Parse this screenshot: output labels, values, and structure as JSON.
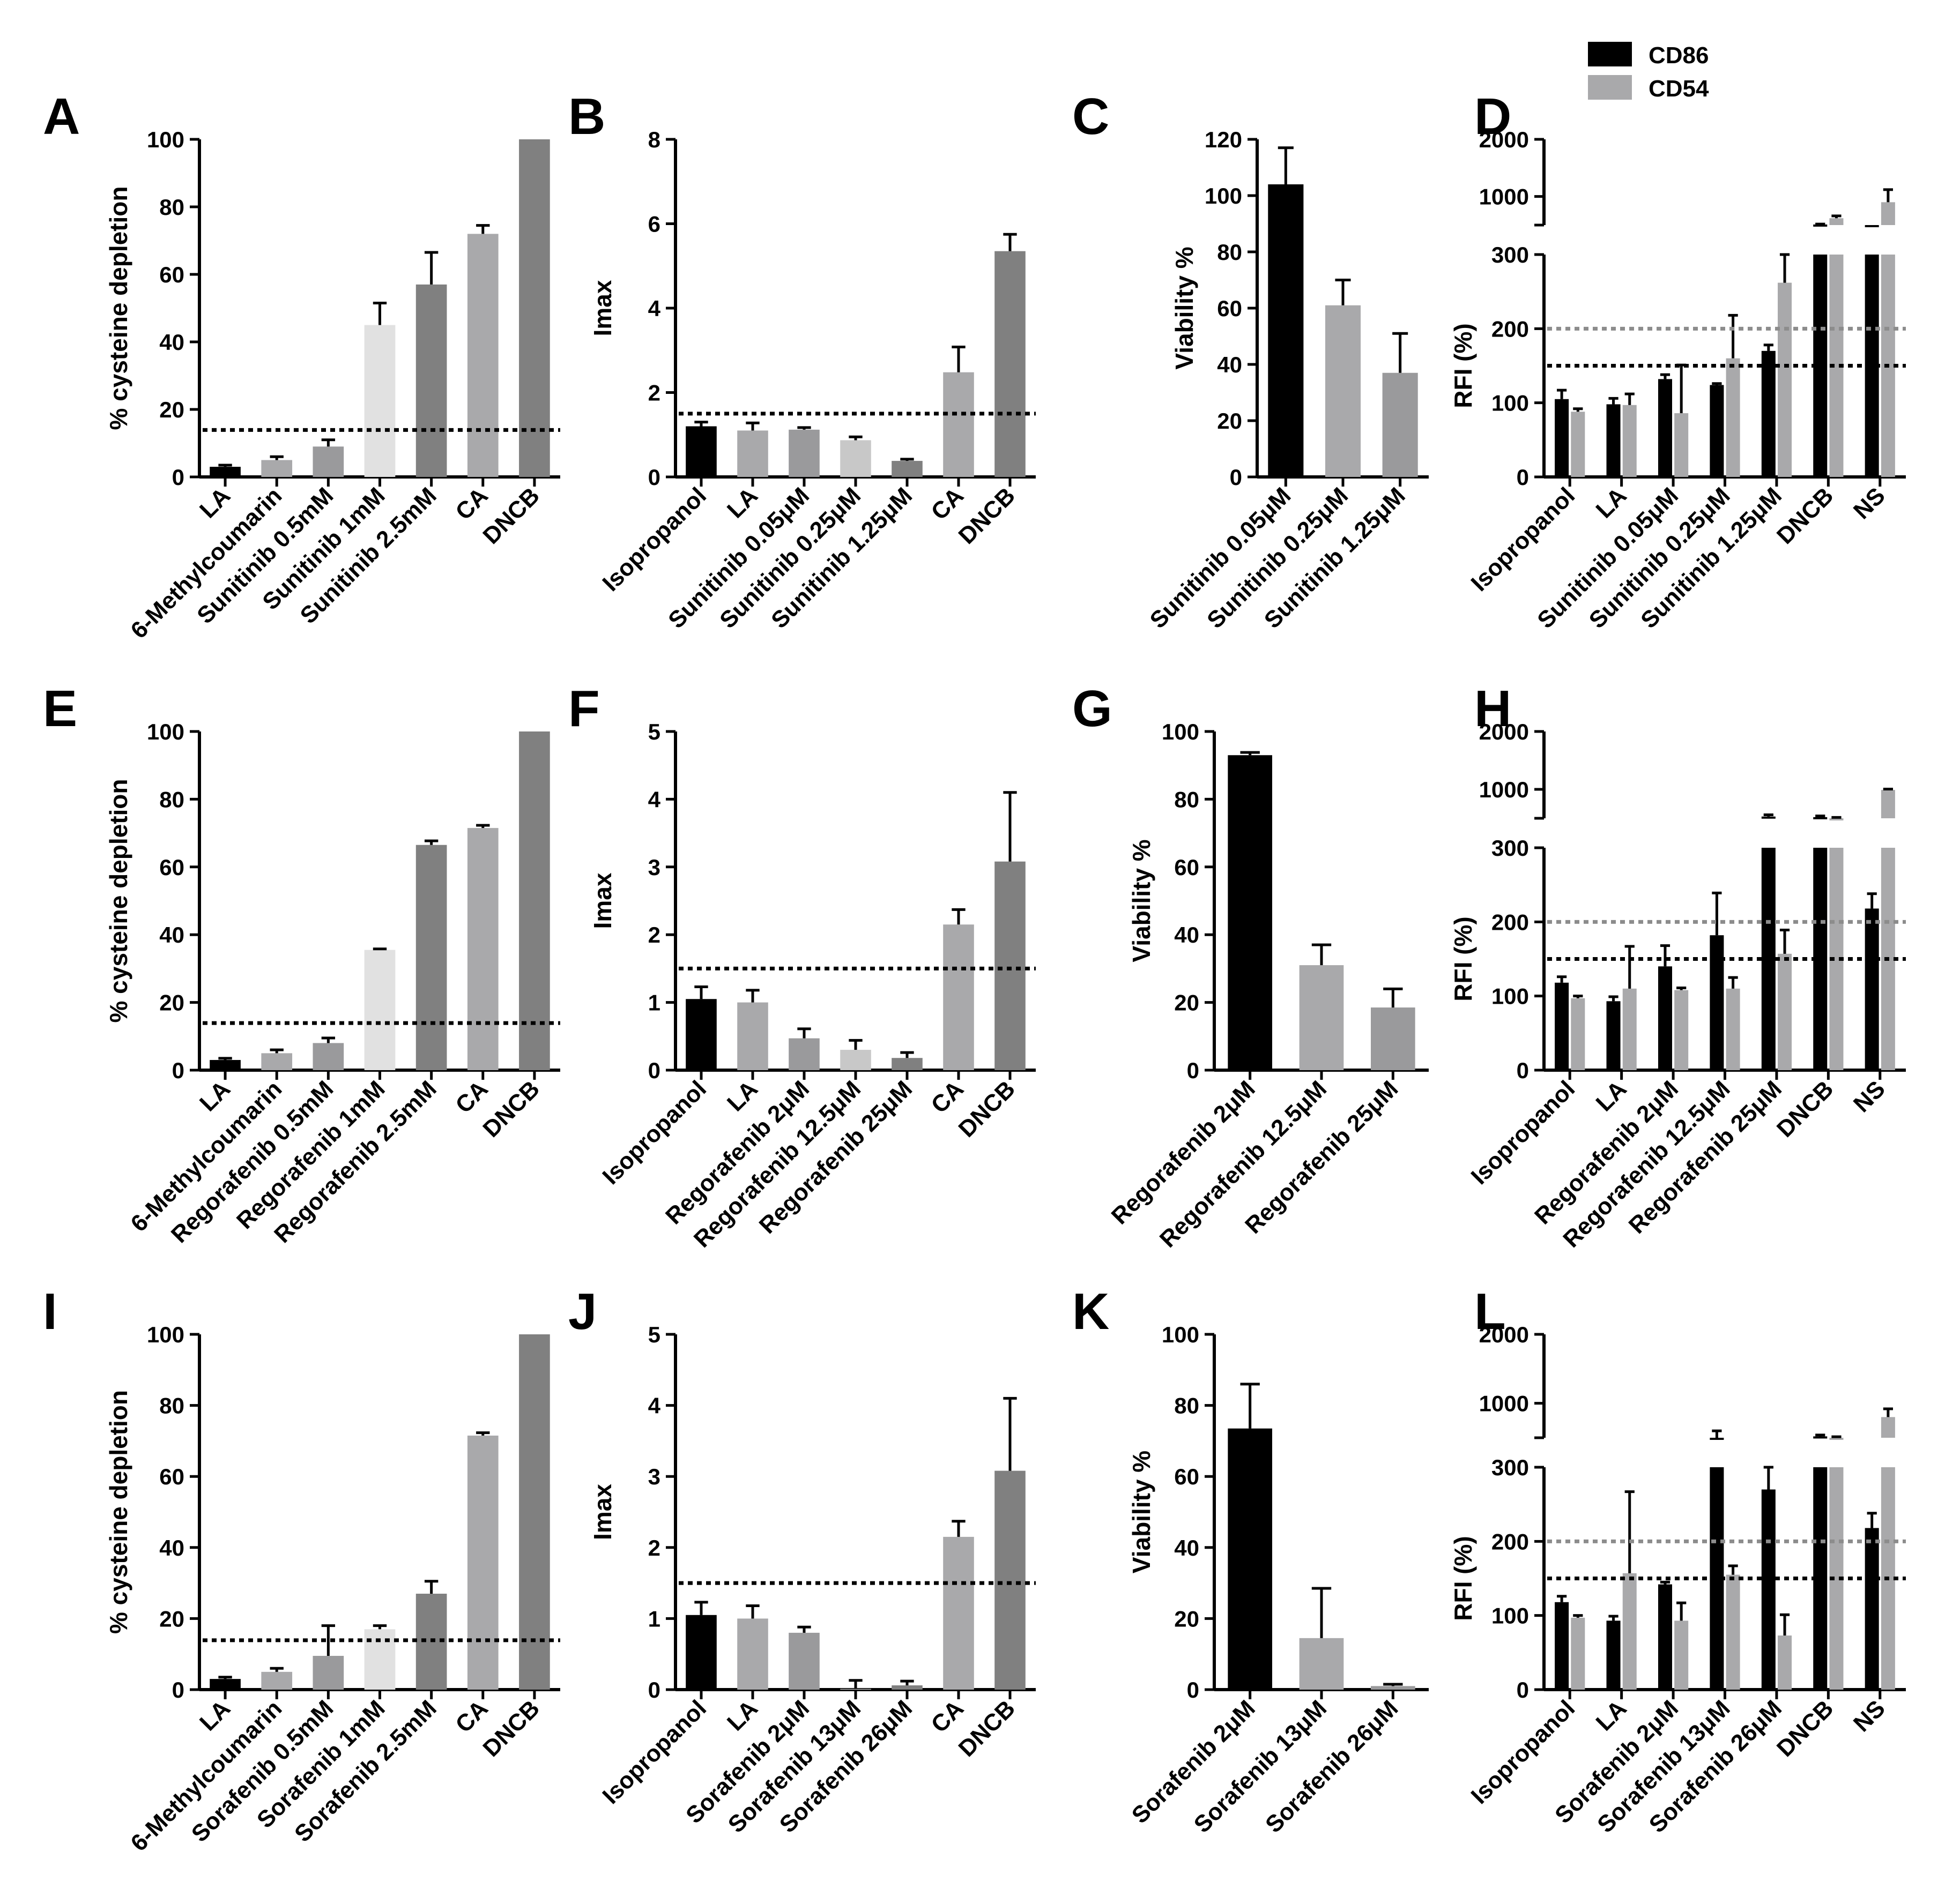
{
  "colors": {
    "black": "#000000",
    "lightest": "#e1e1e1",
    "light": "#c8c8c8",
    "mid": "#a9a9ab",
    "grey": "#9a9a9c",
    "dark": "#808080",
    "threshold_black": "#000000",
    "threshold_grey": "#8c8c8c"
  },
  "legend": {
    "items": [
      {
        "label": "CD86",
        "color": "#000000"
      },
      {
        "label": "CD54",
        "color": "#a9a9ab"
      }
    ]
  },
  "chart_data": [
    {
      "panel": "A",
      "type": "bar",
      "ylabel": "% cysteine depletion",
      "ylim": [
        0,
        100
      ],
      "yticks": [
        0,
        20,
        40,
        60,
        80,
        100
      ],
      "threshold": 13.9,
      "categories": [
        "LA",
        "6-Methylcoumarin",
        "Sunitinib 0.5mM",
        "Sunitinib 1mM",
        "Sunitinib 2.5mM",
        "CA",
        "DNCB"
      ],
      "values": [
        3,
        5,
        9,
        45,
        57,
        72,
        100
      ],
      "errors": [
        0.5,
        1,
        2,
        6.5,
        9.5,
        2.5,
        0
      ],
      "bar_colors": [
        "black",
        "mid",
        "grey",
        "lightest",
        "dark",
        "mid",
        "dark"
      ]
    },
    {
      "panel": "B",
      "type": "bar",
      "ylabel": "Imax",
      "ylim": [
        0,
        8
      ],
      "yticks": [
        0,
        2,
        4,
        6,
        8
      ],
      "threshold": 1.5,
      "categories": [
        "Isopropanol",
        "LA",
        "Sunitinib 0.05μM",
        "Sunitinib 0.25μM",
        "Sunitinib 1.25μM",
        "CA",
        "DNCB"
      ],
      "values": [
        1.2,
        1.1,
        1.12,
        0.87,
        0.38,
        2.48,
        5.35
      ],
      "errors": [
        0.1,
        0.18,
        0.05,
        0.08,
        0.04,
        0.6,
        0.4
      ],
      "bar_colors": [
        "black",
        "mid",
        "grey",
        "light",
        "dark",
        "mid",
        "dark"
      ]
    },
    {
      "panel": "C",
      "type": "bar",
      "ylabel": "Viability %",
      "ylim": [
        0,
        120
      ],
      "yticks": [
        0,
        20,
        40,
        60,
        80,
        100,
        120
      ],
      "categories": [
        "Sunitinib 0.05μM",
        "Sunitinib 0.25μM",
        "Sunitinib 1.25μM"
      ],
      "values": [
        104,
        61,
        37
      ],
      "errors": [
        13,
        9,
        14
      ],
      "bar_colors": [
        "black",
        "mid",
        "grey"
      ]
    },
    {
      "panel": "D",
      "type": "bar",
      "ylabel": "RFI (%)",
      "broken_axis": true,
      "lower_ylim": [
        0,
        300
      ],
      "lower_yticks": [
        0,
        100,
        200,
        300
      ],
      "upper_ylim": [
        500,
        2000
      ],
      "upper_yticks": [
        1000,
        2000
      ],
      "thresholds": [
        {
          "value": 150,
          "series": "CD86"
        },
        {
          "value": 200,
          "series": "CD54"
        }
      ],
      "categories": [
        "Isopropanol",
        "LA",
        "Sunitinib 0.05μM",
        "Sunitinib 0.25μM",
        "Sunitinib 1.25μM",
        "DNCB",
        "NS"
      ],
      "series": [
        {
          "name": "CD86",
          "values": [
            105,
            98,
            132,
            124,
            170,
            510,
            500
          ],
          "errors": [
            12,
            8,
            6,
            2,
            8,
            8,
            0
          ]
        },
        {
          "name": "CD54",
          "values": [
            88,
            97,
            86,
            160,
            262,
            620,
            900
          ],
          "errors": [
            4,
            15,
            65,
            58,
            38,
            40,
            220
          ]
        }
      ]
    },
    {
      "panel": "E",
      "type": "bar",
      "ylabel": "% cysteine depletion",
      "ylim": [
        0,
        100
      ],
      "yticks": [
        0,
        20,
        40,
        60,
        80,
        100
      ],
      "threshold": 13.9,
      "categories": [
        "LA",
        "6-Methylcoumarin",
        "Regorafenib 0.5mM",
        "Regorafenib 1mM",
        "Regorafenib 2.5mM",
        "CA",
        "DNCB"
      ],
      "values": [
        3,
        5,
        8,
        35.5,
        66.5,
        71.5,
        100
      ],
      "errors": [
        0.5,
        1,
        1.5,
        0.3,
        1.2,
        0.8,
        0
      ],
      "bar_colors": [
        "black",
        "mid",
        "grey",
        "lightest",
        "dark",
        "mid",
        "dark"
      ]
    },
    {
      "panel": "F",
      "type": "bar",
      "ylabel": "Imax",
      "ylim": [
        0,
        5
      ],
      "yticks": [
        0,
        1,
        2,
        3,
        4,
        5
      ],
      "threshold": 1.5,
      "categories": [
        "Isopropanol",
        "LA",
        "Regorafenib 2μM",
        "Regorafenib 12.5μM",
        "Regorafenib 25μM",
        "CA",
        "DNCB"
      ],
      "values": [
        1.05,
        1.0,
        0.47,
        0.3,
        0.18,
        2.15,
        3.08
      ],
      "errors": [
        0.18,
        0.18,
        0.14,
        0.14,
        0.08,
        0.22,
        1.02
      ],
      "bar_colors": [
        "black",
        "mid",
        "grey",
        "light",
        "dark",
        "mid",
        "dark"
      ]
    },
    {
      "panel": "G",
      "type": "bar",
      "ylabel": "Viability %",
      "ylim": [
        0,
        100
      ],
      "yticks": [
        0,
        20,
        40,
        60,
        80,
        100
      ],
      "categories": [
        "Regorafenib 2μM",
        "Regorafenib 12.5μM",
        "Regorafenib 25μM"
      ],
      "values": [
        93,
        31,
        18.5
      ],
      "errors": [
        0.8,
        6,
        5.5
      ],
      "bar_colors": [
        "black",
        "mid",
        "grey"
      ]
    },
    {
      "panel": "H",
      "type": "bar",
      "ylabel": "RFI (%)",
      "broken_axis": true,
      "lower_ylim": [
        0,
        300
      ],
      "lower_yticks": [
        0,
        100,
        200,
        300
      ],
      "upper_ylim": [
        500,
        2000
      ],
      "upper_yticks": [
        1000,
        2000
      ],
      "thresholds": [
        {
          "value": 150,
          "series": "CD86"
        },
        {
          "value": 200,
          "series": "CD54"
        }
      ],
      "categories": [
        "Isopropanol",
        "LA",
        "Regorafenib 2μM",
        "Regorafenib 12.5μM",
        "Regorafenib 25μM",
        "DNCB",
        "NS"
      ],
      "series": [
        {
          "name": "CD86",
          "values": [
            118,
            93,
            140,
            182,
            530,
            520,
            218
          ],
          "errors": [
            8,
            6,
            28,
            57,
            30,
            20,
            20
          ]
        },
        {
          "name": "CD54",
          "values": [
            97,
            110,
            108,
            110,
            157,
            500,
            990
          ],
          "errors": [
            3,
            57,
            3,
            15,
            32,
            15,
            15
          ]
        }
      ]
    },
    {
      "panel": "I",
      "type": "bar",
      "ylabel": "% cysteine depletion",
      "ylim": [
        0,
        100
      ],
      "yticks": [
        0,
        20,
        40,
        60,
        80,
        100
      ],
      "threshold": 13.9,
      "categories": [
        "LA",
        "6-Methylcoumarin",
        "Sorafenib 0.5mM",
        "Sorafenib 1mM",
        "Sorafenib 2.5mM",
        "CA",
        "DNCB"
      ],
      "values": [
        3,
        5,
        9.5,
        17,
        27,
        71.5,
        100
      ],
      "errors": [
        0.5,
        1,
        8.5,
        1,
        3.5,
        0.8,
        0
      ],
      "bar_colors": [
        "black",
        "mid",
        "grey",
        "lightest",
        "dark",
        "mid",
        "dark"
      ]
    },
    {
      "panel": "J",
      "type": "bar",
      "ylabel": "Imax",
      "ylim": [
        0,
        5
      ],
      "yticks": [
        0,
        1,
        2,
        3,
        4,
        5
      ],
      "threshold": 1.5,
      "categories": [
        "Isopropanol",
        "LA",
        "Sorafenib 2μM",
        "Sorafenib 13μM",
        "Sorafenib 26μM",
        "CA",
        "DNCB"
      ],
      "values": [
        1.05,
        1.0,
        0.8,
        0.01,
        0.06,
        2.15,
        3.08
      ],
      "errors": [
        0.18,
        0.18,
        0.08,
        0.12,
        0.06,
        0.22,
        1.02
      ],
      "bar_colors": [
        "black",
        "mid",
        "grey",
        "light",
        "dark",
        "mid",
        "dark"
      ]
    },
    {
      "panel": "K",
      "type": "bar",
      "ylabel": "Viability %",
      "ylim": [
        0,
        100
      ],
      "yticks": [
        0,
        20,
        40,
        60,
        80,
        100
      ],
      "categories": [
        "Sorafenib 2μM",
        "Sorafenib 13μM",
        "Sorafenib 26μM"
      ],
      "values": [
        73.5,
        14.5,
        1
      ],
      "errors": [
        12.5,
        14,
        0.5
      ],
      "bar_colors": [
        "black",
        "mid",
        "grey"
      ]
    },
    {
      "panel": "L",
      "type": "bar",
      "ylabel": "RFI (%)",
      "broken_axis": true,
      "lower_ylim": [
        0,
        300
      ],
      "lower_yticks": [
        0,
        100,
        200,
        300
      ],
      "upper_ylim": [
        500,
        2000
      ],
      "upper_yticks": [
        1000,
        2000
      ],
      "thresholds": [
        {
          "value": 150,
          "series": "CD86"
        },
        {
          "value": 200,
          "series": "CD54"
        }
      ],
      "categories": [
        "Isopropanol",
        "LA",
        "Sorafenib 2μM",
        "Sorafenib 13μM",
        "Sorafenib 26μM",
        "DNCB",
        "NS"
      ],
      "series": [
        {
          "name": "CD86",
          "values": [
            118,
            93,
            142,
            500,
            270,
            520,
            218
          ],
          "errors": [
            8,
            6,
            3,
            100,
            30,
            20,
            20
          ]
        },
        {
          "name": "CD54",
          "values": [
            97,
            157,
            93,
            155,
            73,
            500,
            800
          ],
          "errors": [
            3,
            110,
            24,
            12,
            28,
            15,
            120
          ]
        }
      ]
    }
  ]
}
